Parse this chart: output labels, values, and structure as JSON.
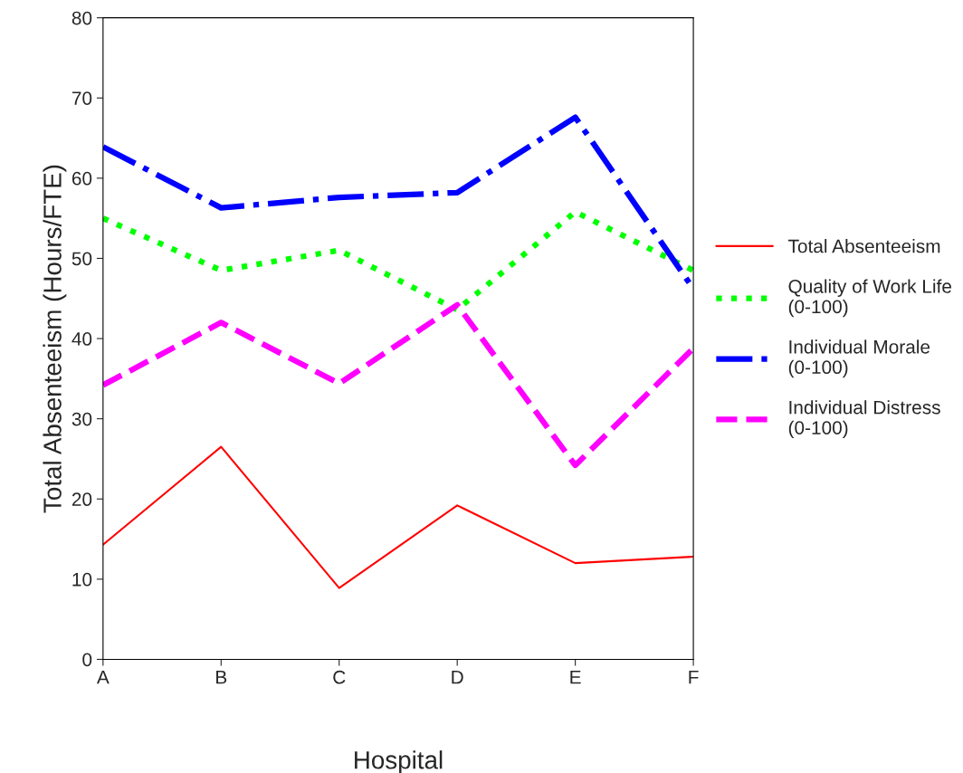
{
  "chart_data": {
    "type": "line",
    "xlabel": "Hospital",
    "ylabel": "Total Absenteeism (Hours/FTE)",
    "categories": [
      "A",
      "B",
      "C",
      "D",
      "E",
      "F"
    ],
    "ylim": [
      0,
      80
    ],
    "yticks": [
      0,
      10,
      20,
      30,
      40,
      50,
      60,
      70,
      80
    ],
    "grid": false,
    "legend": "right",
    "series": [
      {
        "name": "Total Absenteeism",
        "color": "#ff0000",
        "line_style": "solid",
        "values": [
          14.3,
          26.5,
          8.9,
          19.2,
          12.0,
          12.8
        ]
      },
      {
        "name": "Quality of Work Life\n(0-100)",
        "color": "#00ff00",
        "line_style": "dotted",
        "values": [
          55.0,
          48.5,
          51.0,
          43.6,
          55.8,
          48.5
        ]
      },
      {
        "name": "Individual Morale\n(0-100)",
        "color": "#0000ff",
        "line_style": "dashdot",
        "values": [
          63.9,
          56.3,
          57.6,
          58.2,
          67.6,
          46.2
        ]
      },
      {
        "name": "Individual Distress\n(0-100)",
        "color": "#ff00ff",
        "line_style": "dashed",
        "values": [
          34.2,
          42.0,
          34.4,
          44.2,
          24.2,
          38.8
        ]
      }
    ]
  }
}
